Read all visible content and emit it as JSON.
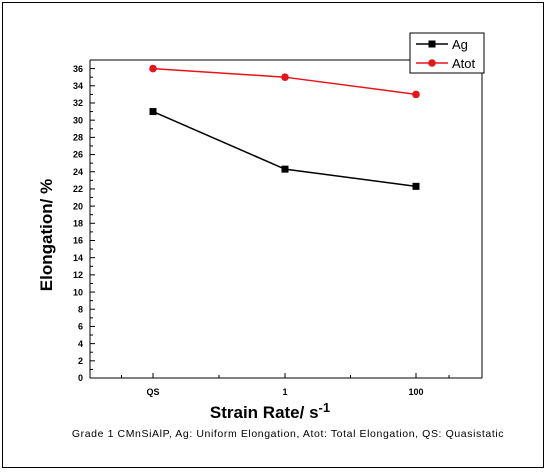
{
  "chart_data": {
    "type": "line",
    "categories": [
      "QS",
      "1",
      "100"
    ],
    "series": [
      {
        "name": "Ag",
        "values": [
          31.0,
          24.3,
          22.3
        ],
        "color": "#000000",
        "marker": "square"
      },
      {
        "name": "Atot",
        "values": [
          36.0,
          35.0,
          33.0
        ],
        "color": "#e8141a",
        "marker": "circle"
      }
    ],
    "xlabel": "Strain Rate/ s",
    "xlabel_superscript": "-1",
    "ylabel": "Elongation/ %",
    "ylim": [
      0,
      37
    ],
    "yticks": [
      "0",
      "2",
      "4",
      "6",
      "8",
      "10",
      "12",
      "14",
      "16",
      "18",
      "20",
      "22",
      "24",
      "26",
      "28",
      "30",
      "32",
      "34",
      "36"
    ],
    "grid": false,
    "legend_position": "top-right",
    "caption": "Grade 1 CMnSiAlP, Ag: Uniform Elongation, Atot: Total Elongation, QS: Quasistatic"
  }
}
